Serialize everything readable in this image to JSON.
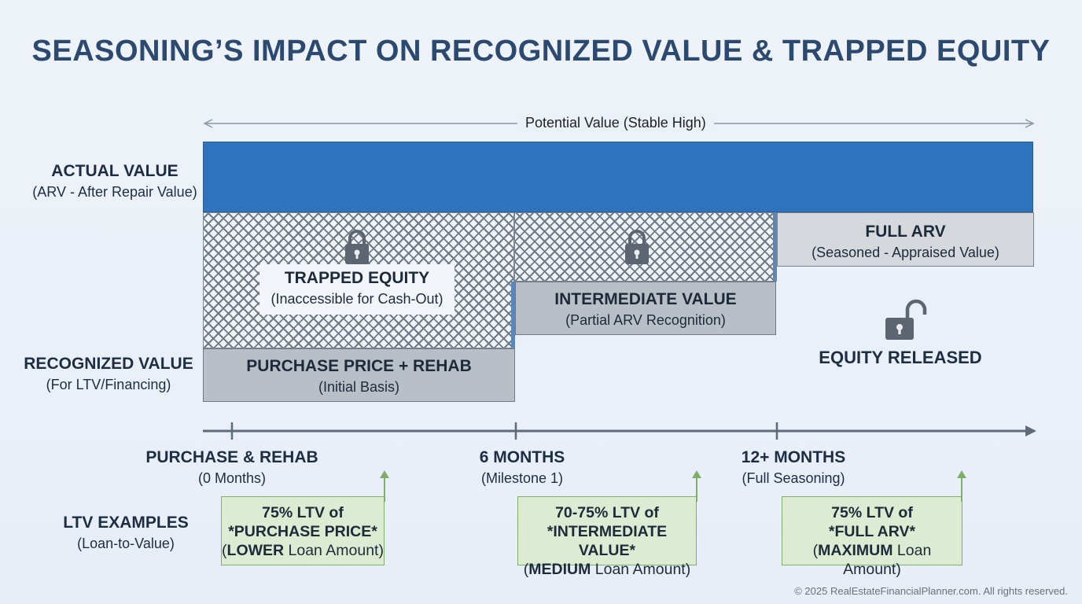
{
  "title": "SEASONING’S IMPACT ON RECOGNIZED VALUE & TRAPPED EQUITY",
  "potential_value_label": "Potential Value (Stable High)",
  "actual_value": {
    "title": "ACTUAL VALUE",
    "subtitle": "(ARV - After Repair Value)"
  },
  "recognized_value": {
    "title": "RECOGNIZED VALUE",
    "subtitle": "(For LTV/Financing)"
  },
  "trapped_equity": {
    "title": "TRAPPED EQUITY",
    "subtitle": "(Inaccessible for Cash-Out)"
  },
  "purchase_box": {
    "title": "PURCHASE PRICE + REHAB",
    "subtitle": "(Initial Basis)"
  },
  "intermediate_box": {
    "title": "INTERMEDIATE VALUE",
    "subtitle": "(Partial ARV Recognition)"
  },
  "full_arv_box": {
    "title": "FULL ARV",
    "subtitle": "(Seasoned - Appraised Value)"
  },
  "equity_released": "EQUITY RELEASED",
  "timeline": [
    {
      "title": "PURCHASE & REHAB",
      "subtitle": "(0 Months)"
    },
    {
      "title": "6 MONTHS",
      "subtitle": "(Milestone 1)"
    },
    {
      "title": "12+ MONTHS",
      "subtitle": "(Full Seasoning)"
    }
  ],
  "ltv_examples": {
    "title": "LTV EXAMPLES",
    "subtitle": "(Loan-to-Value)",
    "boxes": [
      {
        "line1": "75% LTV of",
        "line2": "*PURCHASE PRICE*",
        "emph": "LOWER",
        "rest": " Loan Amount)"
      },
      {
        "line1": "70-75% LTV of",
        "line2": "*INTERMEDIATE VALUE*",
        "emph": "MEDIUM",
        "rest": " Loan Amount)"
      },
      {
        "line1": "75% LTV of",
        "line2": "*FULL ARV*",
        "emph": "MAXIMUM",
        "rest": " Loan Amount)"
      }
    ]
  },
  "colors": {
    "actual_bar": "#2e74bd",
    "title": "#2c4a70",
    "ltv_fill": "#dcecd2",
    "ltv_border": "#7fae6a",
    "recognized_grey": "#b9bfc6"
  },
  "icons": [
    "lock-icon",
    "unlock-icon",
    "arrow-up-icon"
  ],
  "copyright": "© 2025 RealEstateFinancialPlanner.com. All rights reserved."
}
